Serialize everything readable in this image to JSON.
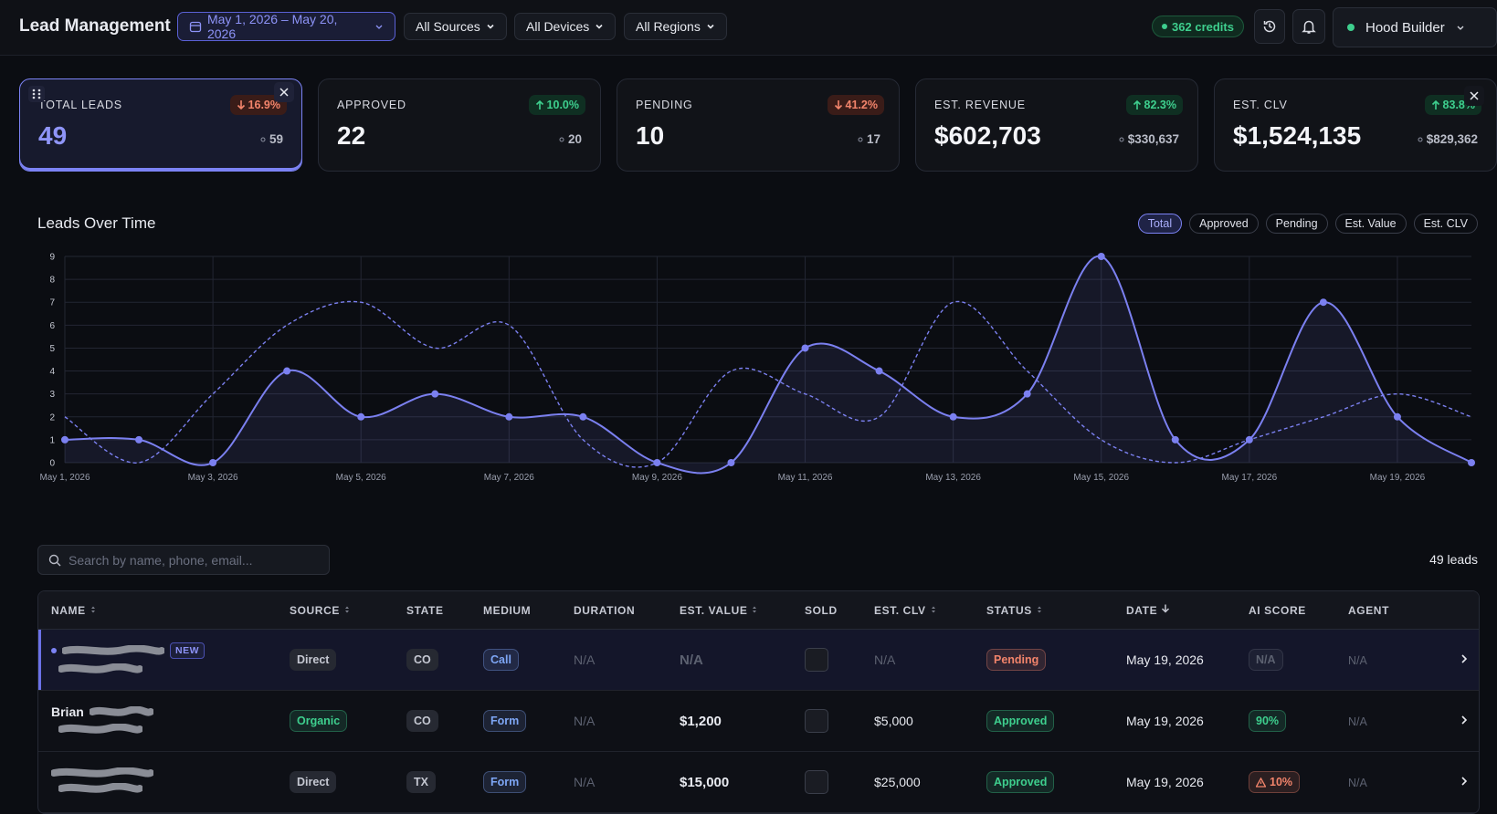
{
  "header": {
    "title": "Lead Management",
    "date_range": "May 1, 2026 – May 20, 2026",
    "filters": [
      "All Sources",
      "All Devices",
      "All Regions"
    ],
    "credits": "362 credits",
    "user": "Hood Builder"
  },
  "kpis": [
    {
      "label": "TOTAL LEADS",
      "value": "49",
      "change": "16.9%",
      "trend": "down",
      "previous": "59",
      "selected": true
    },
    {
      "label": "APPROVED",
      "value": "22",
      "change": "10.0%",
      "trend": "up",
      "previous": "20"
    },
    {
      "label": "PENDING",
      "value": "10",
      "change": "41.2%",
      "trend": "down",
      "previous": "17"
    },
    {
      "label": "EST. REVENUE",
      "value": "$602,703",
      "change": "82.3%",
      "trend": "up",
      "previous": "$330,637"
    },
    {
      "label": "EST. CLV",
      "value": "$1,524,135",
      "change": "83.8%",
      "trend": "up",
      "previous": "$829,362"
    }
  ],
  "chart_data": {
    "type": "line",
    "title": "Leads Over Time",
    "toggles": [
      "Total",
      "Approved",
      "Pending",
      "Est. Value",
      "Est. CLV"
    ],
    "active_toggle": 0,
    "categories": [
      "May 1, 2026",
      null,
      "May 3, 2026",
      null,
      "May 5, 2026",
      null,
      "May 7, 2026",
      null,
      "May 9, 2026",
      null,
      "May 11, 2026",
      null,
      "May 13, 2026",
      null,
      "May 15, 2026",
      null,
      "May 17, 2026",
      null,
      "May 19, 2026",
      null
    ],
    "series": [
      {
        "color": "#7b80f0",
        "values": [
          1,
          1,
          0,
          4,
          2,
          3,
          2,
          2,
          0,
          0,
          5,
          4,
          2,
          3,
          9,
          1,
          1,
          7,
          2,
          0
        ],
        "area": true,
        "markers": true
      },
      {
        "color": "#7b80f0",
        "values": [
          2,
          0,
          3,
          6,
          7,
          5,
          6,
          1,
          0,
          4,
          3,
          2,
          7,
          4,
          1,
          0,
          1,
          2,
          3,
          2
        ],
        "dashed": true
      }
    ],
    "ylim": [
      0,
      9
    ],
    "yticks": [
      0,
      1,
      2,
      3,
      4,
      5,
      6,
      7,
      8,
      9
    ],
    "grid": true
  },
  "table": {
    "search_placeholder": "Search by name, phone, email...",
    "count": "49 leads",
    "columns": [
      {
        "label": "NAME",
        "kind": "name",
        "sort": "both"
      },
      {
        "label": "SOURCE",
        "kind": "pill",
        "sort": "both"
      },
      {
        "label": "STATE",
        "kind": "pill"
      },
      {
        "label": "MEDIUM",
        "kind": "pill"
      },
      {
        "label": "DURATION",
        "kind": "text"
      },
      {
        "label": "EST. VALUE",
        "kind": "bold",
        "sort": "both"
      },
      {
        "label": "SOLD",
        "kind": "check"
      },
      {
        "label": "EST. CLV",
        "kind": "text",
        "sort": "both"
      },
      {
        "label": "STATUS",
        "kind": "pill",
        "sort": "both"
      },
      {
        "label": "DATE",
        "kind": "text",
        "sort": "down"
      },
      {
        "label": "AI SCORE",
        "kind": "pill"
      },
      {
        "label": "AGENT",
        "kind": "small"
      }
    ],
    "rows": [
      {
        "highlight": true,
        "redacted": true,
        "badge": "NEW",
        "cells": [
          null,
          "Direct",
          "CO",
          {
            "text": "Call",
            "color": "#7ea6f5"
          },
          {
            "text": "N/A",
            "color": "#5c6170"
          },
          {
            "text": "N/A",
            "color": "#5c6170"
          },
          null,
          {
            "text": "N/A",
            "color": "#5c6170"
          },
          {
            "text": "Pending",
            "color": "#f2846b"
          },
          "May 19, 2026",
          {
            "text": "N/A",
            "color": "#5c6170"
          },
          {
            "text": "N/A",
            "color": "#5c6170"
          }
        ]
      },
      {
        "redacted": true,
        "cells": [
          "Brian",
          {
            "text": "Organic",
            "color": "#3ecf8e"
          },
          "CO",
          {
            "text": "Form",
            "color": "#7ea6f5"
          },
          {
            "text": "N/A",
            "color": "#5c6170"
          },
          "$1,200",
          null,
          "$5,000",
          {
            "text": "Approved",
            "color": "#3ecf8e"
          },
          "May 19, 2026",
          {
            "text": "90%",
            "color": "#3ecf8e"
          },
          {
            "text": "N/A",
            "color": "#5c6170"
          }
        ]
      },
      {
        "redacted": true,
        "cells": [
          null,
          "Direct",
          "TX",
          {
            "text": "Form",
            "color": "#7ea6f5"
          },
          {
            "text": "N/A",
            "color": "#5c6170"
          },
          "$15,000",
          null,
          "$25,000",
          {
            "text": "Approved",
            "color": "#3ecf8e"
          },
          "May 19, 2026",
          {
            "text": "10%",
            "color": "#f2846b",
            "warning": true
          },
          {
            "text": "N/A",
            "color": "#5c6170"
          }
        ]
      }
    ]
  }
}
